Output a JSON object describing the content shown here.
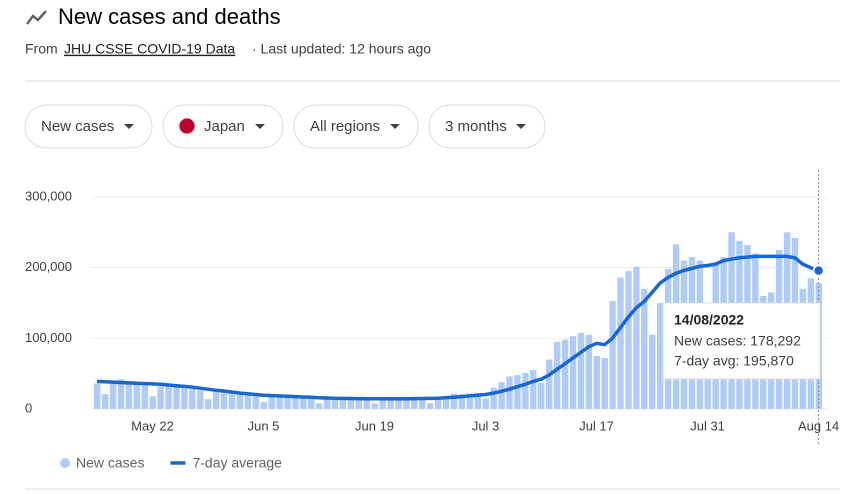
{
  "header": {
    "title": "New cases and deaths",
    "source_prefix": "From",
    "source_link": "JHU CSSE COVID-19 Data",
    "updated": "· Last updated: 12 hours ago"
  },
  "filters": [
    "New cases",
    "Japan",
    "All regions",
    "3 months"
  ],
  "tooltip": {
    "date": "14/08/2022",
    "new_cases": "New cases: 178,292",
    "average": "7-day avg: 195,870"
  },
  "chart_data": {
    "type": "bar",
    "categories": [
      null,
      null,
      null,
      null,
      null,
      null,
      null,
      "May 22",
      null,
      null,
      null,
      null,
      null,
      null,
      null,
      null,
      null,
      null,
      null,
      null,
      null,
      "Jun 5",
      null,
      null,
      null,
      null,
      null,
      null,
      null,
      null,
      null,
      null,
      null,
      null,
      null,
      "Jun 19",
      null,
      null,
      null,
      null,
      null,
      null,
      null,
      null,
      null,
      null,
      null,
      null,
      null,
      "Jul 3",
      null,
      null,
      null,
      null,
      null,
      null,
      null,
      null,
      null,
      null,
      null,
      null,
      null,
      "Jul 17",
      null,
      null,
      null,
      null,
      null,
      null,
      null,
      null,
      null,
      null,
      null,
      null,
      null,
      "Jul 31",
      null,
      null,
      null,
      null,
      null,
      null,
      null,
      null,
      null,
      null,
      null,
      null,
      null,
      "Aug 14"
    ],
    "series": [
      {
        "name": "New cases",
        "type": "bar",
        "color": "#aecbfa",
        "values": [
          36000,
          21000,
          40000,
          42000,
          38000,
          36000,
          35000,
          18000,
          32000,
          33000,
          31000,
          29000,
          28000,
          26000,
          14000,
          24000,
          25000,
          22000,
          20000,
          19000,
          18000,
          10000,
          18000,
          19000,
          18000,
          16000,
          15000,
          15000,
          8000,
          15000,
          16000,
          15000,
          14000,
          14000,
          14000,
          8000,
          13000,
          16000,
          15000,
          14000,
          14000,
          14000,
          8000,
          16000,
          19000,
          22000,
          21000,
          22000,
          23000,
          15000,
          30000,
          38000,
          46000,
          48000,
          51000,
          55000,
          37000,
          70000,
          95000,
          98000,
          103000,
          108000,
          105000,
          75000,
          72000,
          153000,
          186000,
          195000,
          201000,
          170000,
          105000,
          150000,
          198000,
          233000,
          210000,
          215000,
          210000,
          130000,
          205000,
          215000,
          250000,
          238000,
          232000,
          220000,
          160000,
          165000,
          225000,
          250000,
          242000,
          170000,
          185000,
          178292
        ]
      },
      {
        "name": "7-day average",
        "type": "line",
        "color": "#1967d2",
        "values": [
          39000,
          38500,
          38000,
          37500,
          37000,
          36500,
          36000,
          35500,
          35000,
          34000,
          33000,
          32000,
          31000,
          29500,
          28000,
          26500,
          25500,
          24000,
          22500,
          21500,
          20500,
          19500,
          19000,
          18500,
          18000,
          17500,
          17000,
          16500,
          16000,
          15500,
          15200,
          15000,
          14800,
          14700,
          14600,
          14500,
          14400,
          14400,
          14500,
          14600,
          14700,
          14800,
          15000,
          15300,
          15800,
          16500,
          17500,
          18500,
          19500,
          20500,
          22500,
          25000,
          28000,
          31500,
          35000,
          39000,
          42000,
          48000,
          56000,
          64000,
          72000,
          80000,
          88000,
          93000,
          91000,
          100000,
          115000,
          130000,
          143000,
          152000,
          165000,
          178000,
          186000,
          192000,
          196000,
          199000,
          202000,
          203000,
          205000,
          210000,
          212000,
          214000,
          215000,
          216000,
          216000,
          216000,
          216000,
          216000,
          214000,
          205000,
          200000,
          195870
        ]
      }
    ],
    "ylim": [
      0,
      300000
    ],
    "yticks": [
      0,
      {
        "value": 100000,
        "label": "100,000"
      },
      {
        "value": 200000,
        "label": "200,000"
      },
      {
        "value": 300000,
        "label": "300,000"
      }
    ],
    "grid": true,
    "legend": "bottom"
  }
}
